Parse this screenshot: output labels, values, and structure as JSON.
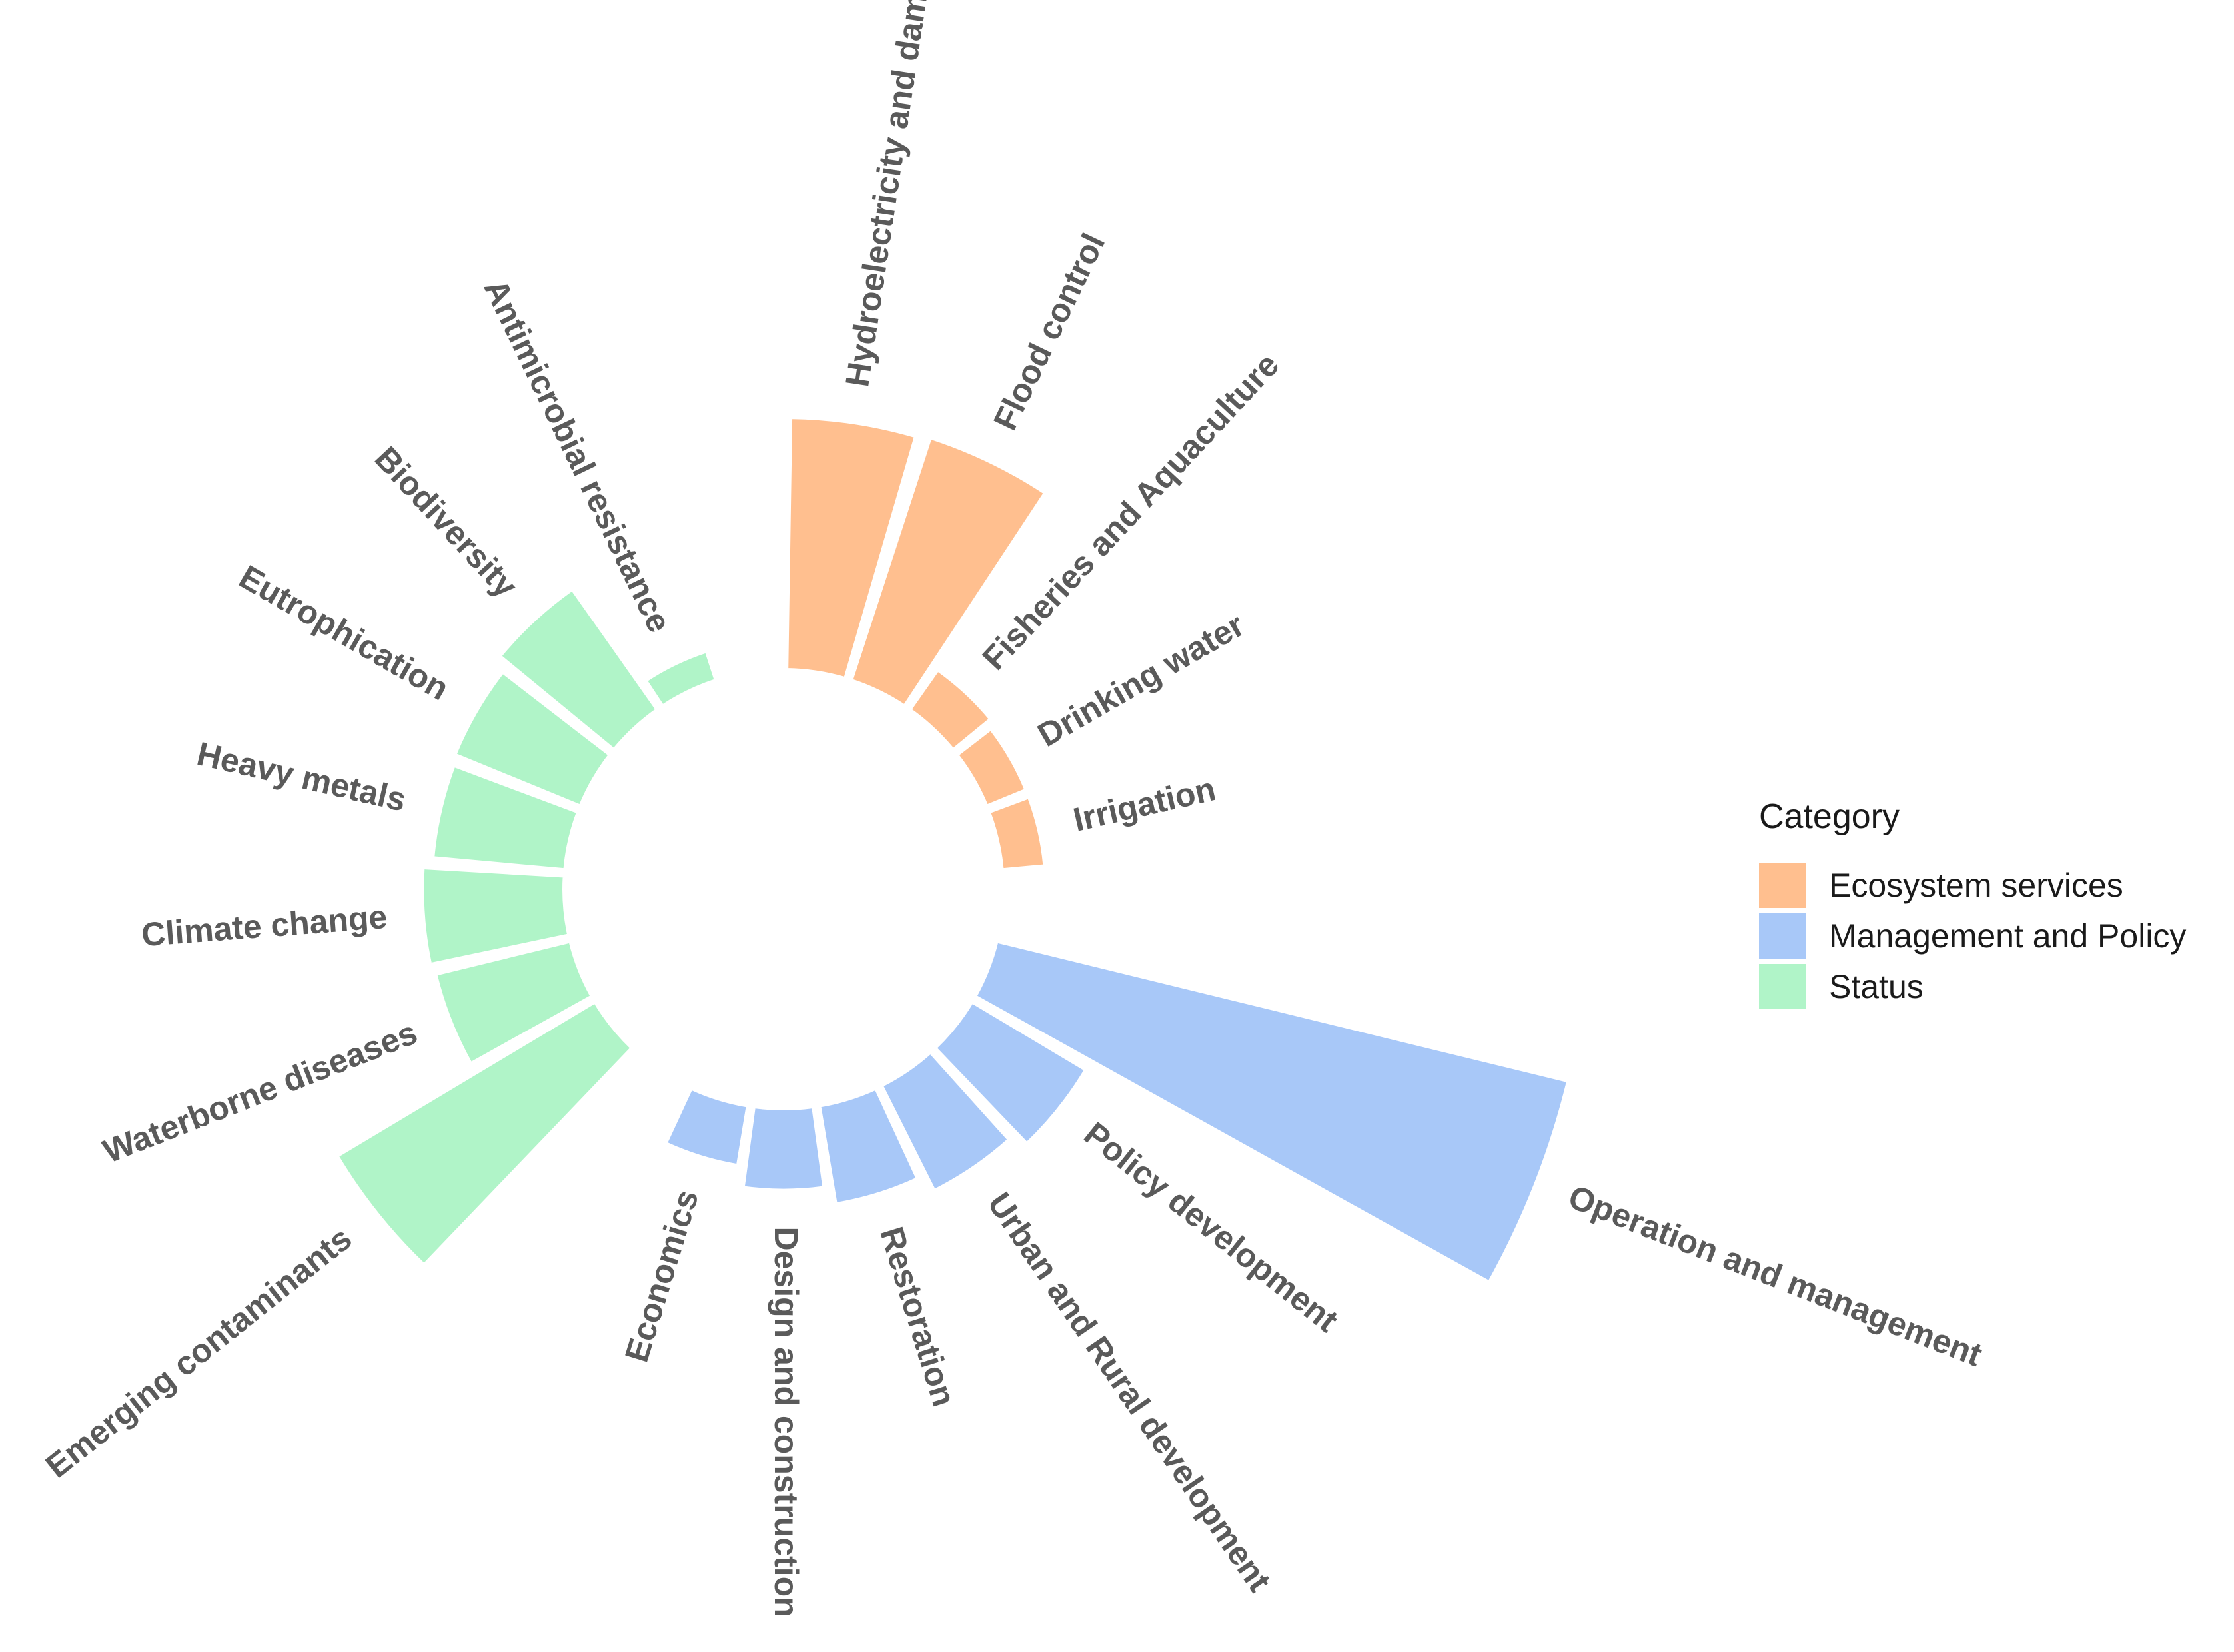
{
  "chart_data": {
    "type": "bar",
    "subtype": "circular-bar",
    "title": "",
    "legend": {
      "title": "Category",
      "placement": "right",
      "entries": [
        {
          "name": "Ecosystem services",
          "color": "#FFBF8F"
        },
        {
          "name": "Management and Policy",
          "color": "#A8C8F8"
        },
        {
          "name": "Status",
          "color": "#B0F4C8"
        }
      ]
    },
    "grid": false,
    "bars": [
      {
        "label": "Hydroelectricity and dams",
        "category": "Ecosystem services",
        "value": 8.4
      },
      {
        "label": "Flood control",
        "category": "Ecosystem services",
        "value": 8.5
      },
      {
        "label": "Fisheries and Aquaculture",
        "category": "Ecosystem services",
        "value": 1.6
      },
      {
        "label": "Drinking water",
        "category": "Ecosystem services",
        "value": 1.4
      },
      {
        "label": "Irrigation",
        "category": "Ecosystem services",
        "value": 1.4
      },
      {
        "label": "Operation and management",
        "category": "Management and Policy",
        "value": 19.6
      },
      {
        "label": "Policy development",
        "category": "Management and Policy",
        "value": 4.4
      },
      {
        "label": "Urban and Rural development",
        "category": "Management and Policy",
        "value": 3.9
      },
      {
        "label": "Restoration",
        "category": "Management and Policy",
        "value": 3.3
      },
      {
        "label": "Design and construction",
        "category": "Management and Policy",
        "value": 2.7
      },
      {
        "label": "Economics",
        "category": "Management and Policy",
        "value": 2.0
      },
      {
        "label": "Emerging contaminants",
        "category": "Status",
        "value": 10.0
      },
      {
        "label": "Waterborne diseases",
        "category": "Status",
        "value": 4.6
      },
      {
        "label": "Climate change",
        "category": "Status",
        "value": 4.7
      },
      {
        "label": "Heavy metals",
        "category": "Status",
        "value": 4.4
      },
      {
        "label": "Eutrophication",
        "category": "Status",
        "value": 4.5
      },
      {
        "label": "Biodiversity",
        "category": "Status",
        "value": 4.9
      },
      {
        "label": "Antimicrobial resistance",
        "category": "Status",
        "value": 1.0
      }
    ]
  }
}
